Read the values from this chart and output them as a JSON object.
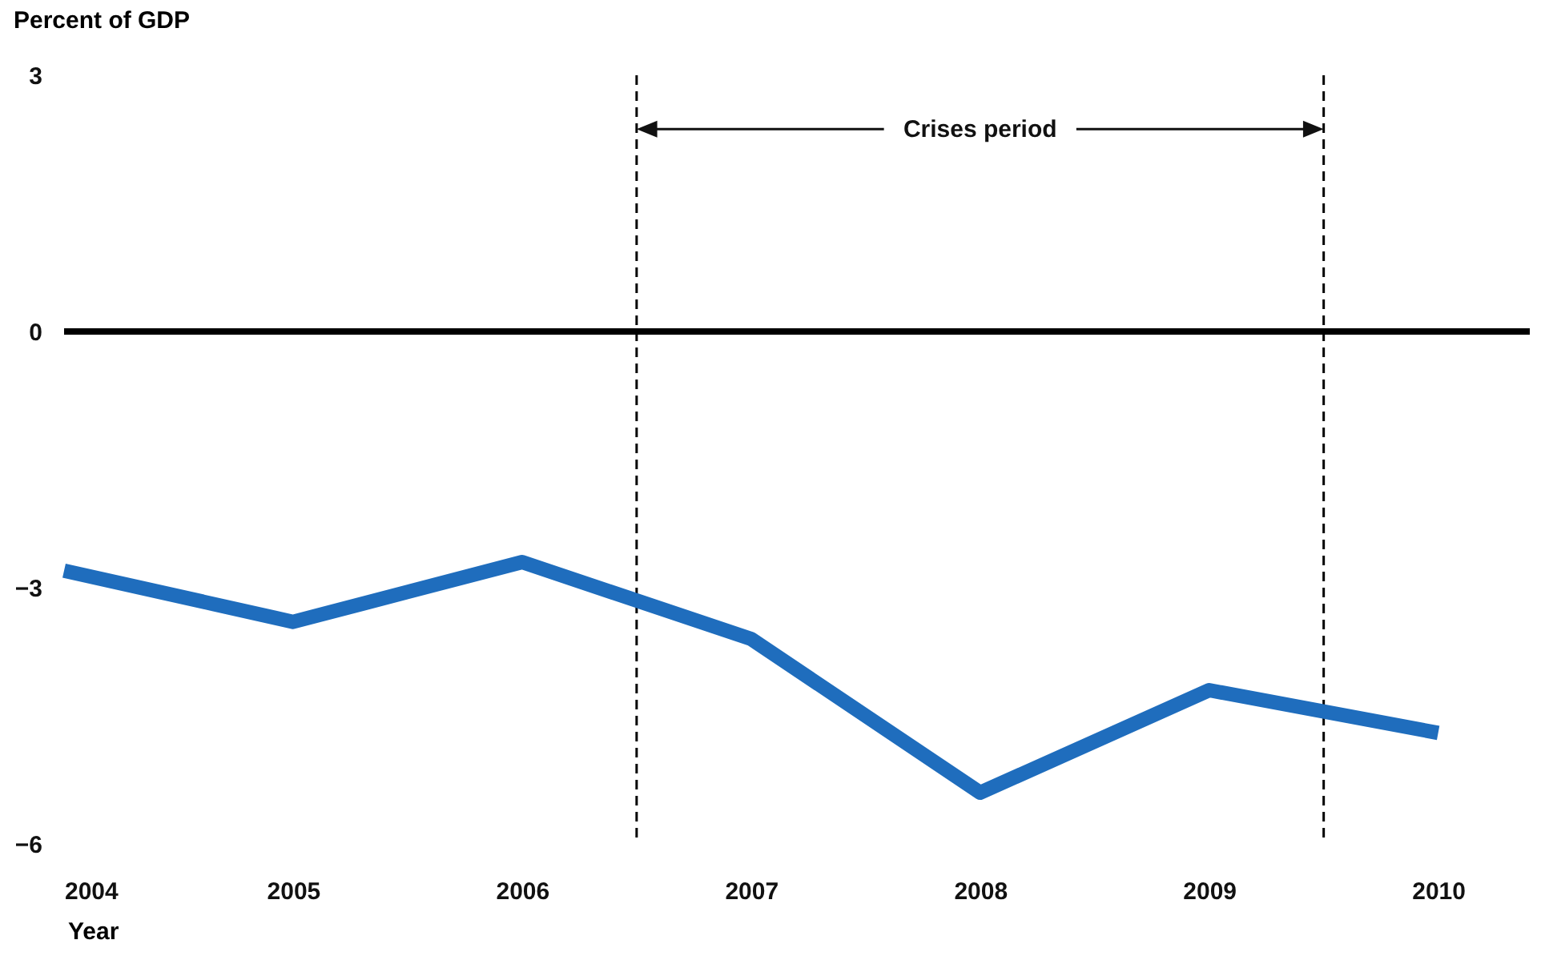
{
  "chart_data": {
    "type": "line",
    "xlabel": "Year",
    "ylabel": "Percent of GDP",
    "x": [
      2004,
      2005,
      2006,
      2007,
      2008,
      2009,
      2010
    ],
    "series": [
      {
        "color": "#1f6dbd",
        "values": [
          -2.8,
          -3.4,
          -2.7,
          -3.6,
          -5.4,
          -4.2,
          -4.7
        ]
      }
    ],
    "xlim": [
      2004,
      2010.4
    ],
    "xticks": [
      2004,
      2005,
      2006,
      2007,
      2008,
      2009,
      2010
    ],
    "ylim": [
      -6,
      3
    ],
    "yticks": [
      -6,
      -3,
      0,
      3
    ],
    "grid": false,
    "marker": "none",
    "line_style": "solid",
    "ref_lines": [
      {
        "axis": "y",
        "value": 0,
        "color": "#000000",
        "line_style": "solid"
      },
      {
        "axis": "x",
        "value": 2006.5,
        "color": "#000000",
        "line_style": "dashed"
      },
      {
        "axis": "x",
        "value": 2009.5,
        "color": "#000000",
        "line_style": "dashed"
      }
    ],
    "annotations": [
      "Crises period"
    ]
  }
}
